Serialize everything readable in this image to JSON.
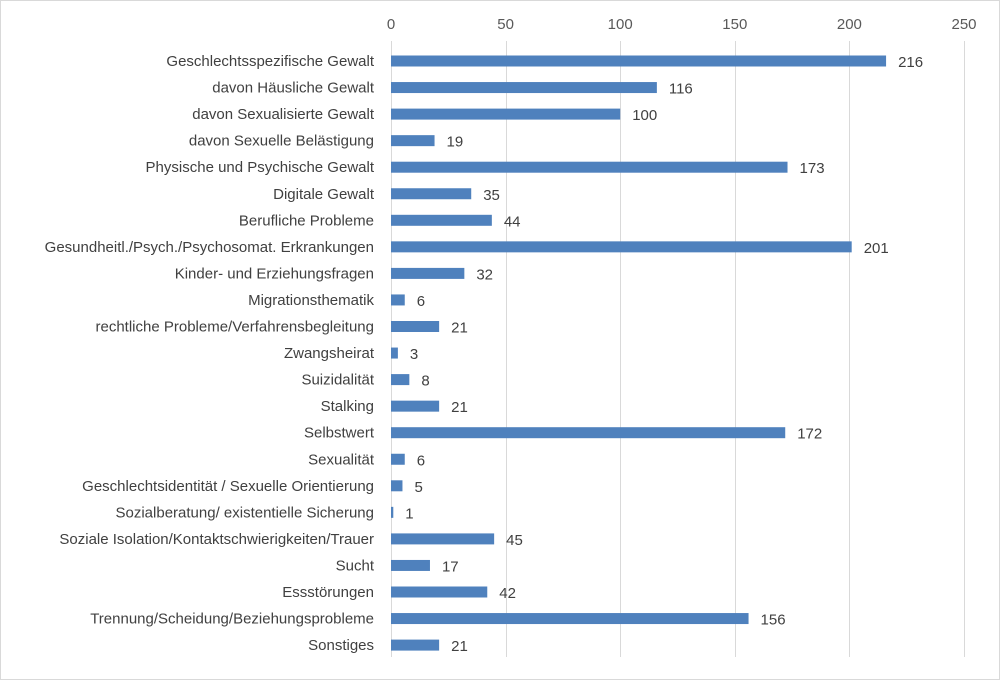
{
  "chart_data": {
    "type": "bar",
    "orientation": "horizontal",
    "categories": [
      "Geschlechtsspezifische Gewalt",
      "davon Häusliche Gewalt",
      "davon Sexualisierte Gewalt",
      "davon Sexuelle Belästigung",
      "Physische und Psychische Gewalt",
      "Digitale Gewalt",
      "Berufliche Probleme",
      "Gesundheitl./Psych./Psychosomat. Erkrankungen",
      "Kinder- und Erziehungsfragen",
      "Migrationsthematik",
      "rechtliche Probleme/Verfahrensbegleitung",
      "Zwangsheirat",
      "Suizidalität",
      "Stalking",
      "Selbstwert",
      "Sexualität",
      "Geschlechtsidentität / Sexuelle Orientierung",
      "Sozialberatung/ existentielle Sicherung",
      "Soziale Isolation/Kontaktschwierigkeiten/Trauer",
      "Sucht",
      "Essstörungen",
      "Trennung/Scheidung/Beziehungsprobleme",
      "Sonstiges"
    ],
    "values": [
      216,
      116,
      100,
      19,
      173,
      35,
      44,
      201,
      32,
      6,
      21,
      3,
      8,
      21,
      172,
      6,
      5,
      1,
      45,
      17,
      42,
      156,
      21
    ],
    "xlim": [
      0,
      250
    ],
    "x_ticks": [
      0,
      50,
      100,
      150,
      200,
      250
    ],
    "x_axis_position": "top",
    "grid": true,
    "bar_color": "#4f81bd",
    "title": "",
    "xlabel": "",
    "ylabel": ""
  }
}
